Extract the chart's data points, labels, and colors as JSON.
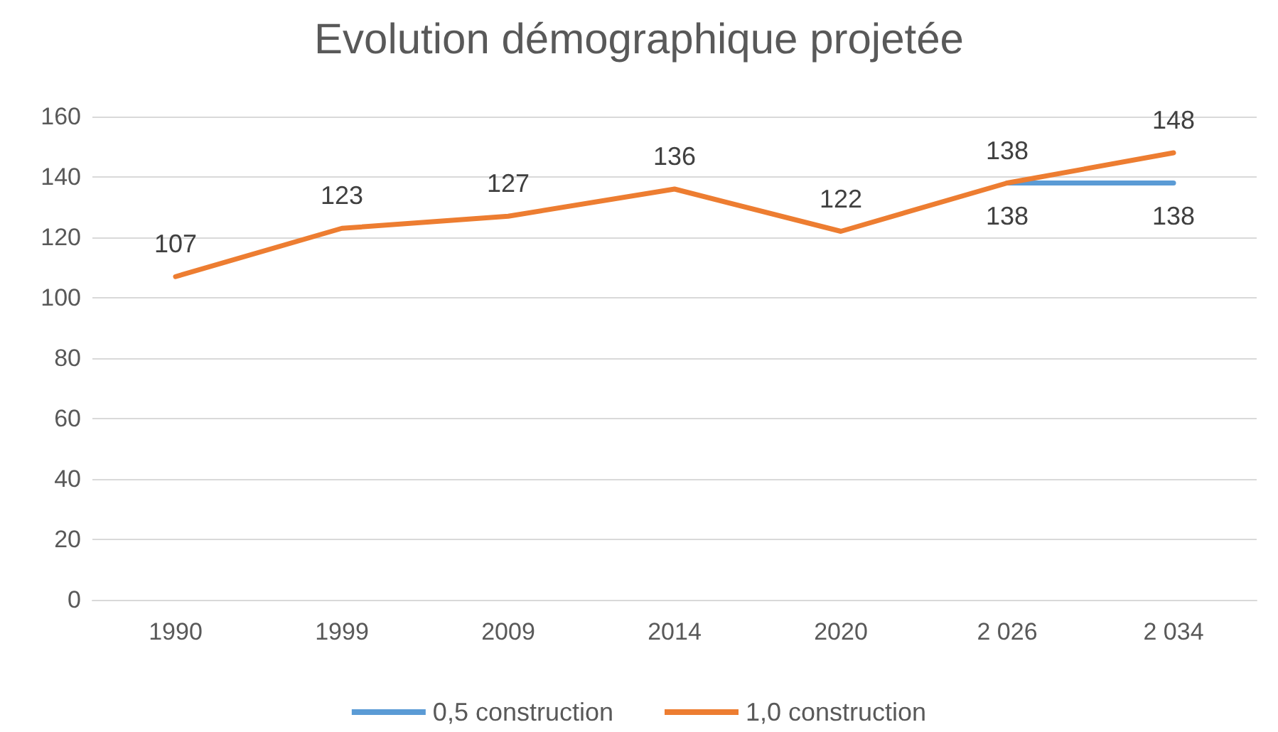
{
  "chart_data": {
    "type": "line",
    "title": "Evolution démographique projetée",
    "categories": [
      "1990",
      "1999",
      "2009",
      "2014",
      "2020",
      "2 026",
      "2 034"
    ],
    "series": [
      {
        "name": "0,5 construction",
        "color": "#5b9bd5",
        "values": [
          null,
          null,
          null,
          null,
          null,
          138,
          138
        ]
      },
      {
        "name": "1,0 construction",
        "color": "#ed7d31",
        "values": [
          107,
          123,
          127,
          136,
          122,
          138,
          148
        ]
      }
    ],
    "ylim": [
      0,
      160
    ],
    "yticks": [
      0,
      20,
      40,
      60,
      80,
      100,
      120,
      140,
      160
    ],
    "grid": "y",
    "legend": "bottom",
    "data_labels": true,
    "marker": "none",
    "line_style": "solid"
  }
}
